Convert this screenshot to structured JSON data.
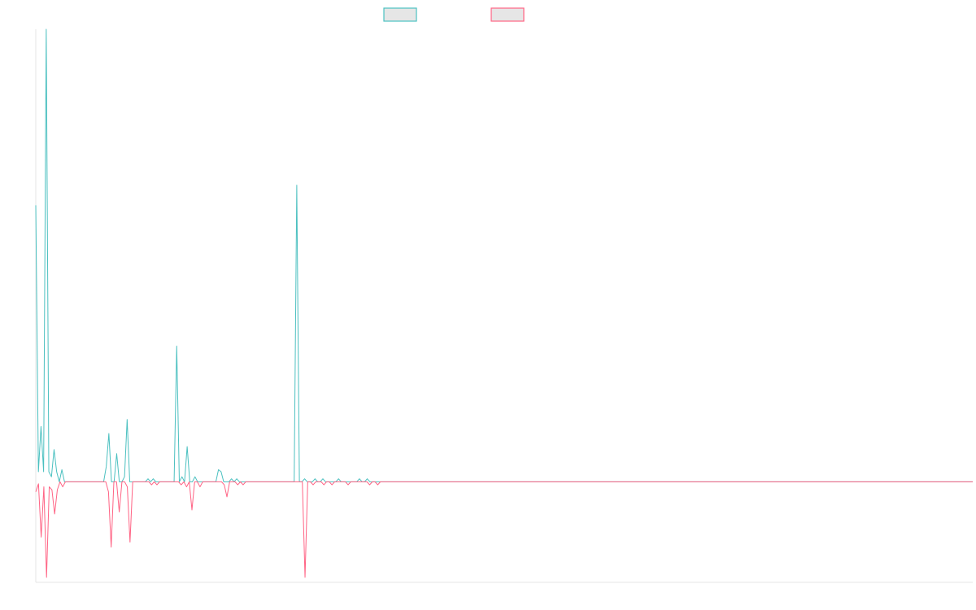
{
  "colors": {
    "series_a": "#4bc0c0",
    "series_b": "#ff6384",
    "legend_fill": "#e6e6e6",
    "axis": "#e6e6e6"
  },
  "legend": {
    "position": "top-center"
  },
  "chart_data": {
    "type": "line",
    "title": "",
    "xlabel": "",
    "ylabel": "",
    "grid": false,
    "ylim": [
      -100,
      450
    ],
    "series": [
      {
        "values": [
          275,
          10,
          55,
          10,
          450,
          10,
          5,
          32,
          10,
          0,
          12,
          0,
          0,
          0,
          0,
          0,
          0,
          0,
          0,
          0,
          0,
          0,
          0,
          0,
          0,
          0,
          0,
          15,
          48,
          0,
          0,
          28,
          0,
          0,
          5,
          62,
          0,
          0,
          0,
          0,
          0,
          0,
          0,
          3,
          0,
          3,
          0,
          0,
          0,
          0,
          0,
          0,
          0,
          0,
          135,
          0,
          5,
          0,
          35,
          0,
          0,
          5,
          0,
          0,
          0,
          0,
          0,
          0,
          0,
          0,
          12,
          10,
          0,
          0,
          0,
          3,
          0,
          3,
          0,
          0,
          0,
          0,
          0,
          0,
          0,
          0,
          0,
          0,
          0,
          0,
          0,
          0,
          0,
          0,
          0,
          0,
          0,
          0,
          0,
          0,
          295,
          0,
          0,
          3,
          0,
          0,
          0,
          3,
          0,
          0,
          3,
          0,
          0,
          0,
          0,
          0,
          3,
          0,
          0,
          0,
          0,
          0,
          0,
          0,
          3,
          0,
          0,
          3,
          0,
          0,
          0,
          0,
          0,
          0,
          0,
          0,
          0,
          0,
          0,
          0,
          0,
          0,
          0,
          0,
          0,
          0,
          0,
          0,
          0,
          0,
          0,
          0,
          0,
          0,
          0,
          0,
          0,
          0,
          0,
          0,
          0,
          0,
          0,
          0,
          0,
          0,
          0,
          0,
          0,
          0,
          0,
          0,
          0,
          0,
          0,
          0,
          0,
          0,
          0,
          0,
          0,
          0,
          0,
          0,
          0,
          0,
          0,
          0,
          0,
          0,
          0,
          0,
          0,
          0,
          0,
          0,
          0,
          0,
          0,
          0,
          0,
          0,
          0,
          0,
          0,
          0,
          0,
          0,
          0,
          0,
          0,
          0,
          0,
          0,
          0,
          0,
          0,
          0,
          0,
          0,
          0,
          0,
          0,
          0,
          0,
          0,
          0,
          0,
          0,
          0,
          0,
          0,
          0,
          0,
          0,
          0,
          0,
          0,
          0,
          0,
          0,
          0,
          0,
          0,
          0,
          0,
          0,
          0,
          0,
          0,
          0,
          0,
          0,
          0,
          0,
          0,
          0,
          0,
          0,
          0,
          0,
          0,
          0,
          0,
          0,
          0,
          0,
          0,
          0,
          0,
          0,
          0,
          0,
          0,
          0,
          0,
          0,
          0,
          0,
          0,
          0,
          0,
          0,
          0,
          0,
          0,
          0,
          0,
          0,
          0,
          0,
          0,
          0,
          0,
          0,
          0,
          0,
          0,
          0,
          0,
          0,
          0,
          0,
          0,
          0,
          0,
          0,
          0,
          0,
          0,
          0,
          0,
          0,
          0,
          0,
          0,
          0,
          0,
          0,
          0,
          0,
          0,
          0,
          0,
          0,
          0,
          0,
          0,
          0,
          0,
          0,
          0,
          0,
          0,
          0,
          0,
          0,
          0,
          0,
          0,
          0,
          0,
          0,
          0,
          0,
          0,
          0,
          0,
          0,
          0,
          0,
          0,
          0,
          0,
          0,
          0,
          0,
          0,
          0,
          0
        ]
      },
      {
        "values": [
          -10,
          -2,
          -55,
          -5,
          -95,
          -5,
          -8,
          -32,
          -8,
          0,
          -5,
          0,
          0,
          0,
          0,
          0,
          0,
          0,
          0,
          0,
          0,
          0,
          0,
          0,
          0,
          0,
          0,
          -10,
          -65,
          0,
          0,
          -30,
          0,
          0,
          -5,
          -60,
          0,
          0,
          0,
          0,
          0,
          0,
          0,
          -3,
          0,
          -3,
          0,
          0,
          0,
          0,
          0,
          0,
          0,
          0,
          -3,
          0,
          -5,
          0,
          -28,
          0,
          0,
          -5,
          0,
          0,
          0,
          0,
          0,
          0,
          0,
          0,
          -3,
          -15,
          0,
          0,
          0,
          -3,
          0,
          -3,
          0,
          0,
          0,
          0,
          0,
          0,
          0,
          0,
          0,
          0,
          0,
          0,
          0,
          0,
          0,
          0,
          0,
          0,
          0,
          0,
          0,
          0,
          -95,
          0,
          0,
          -3,
          0,
          0,
          0,
          -3,
          0,
          0,
          -3,
          0,
          0,
          0,
          0,
          0,
          -3,
          0,
          0,
          0,
          0,
          0,
          0,
          0,
          -3,
          0,
          0,
          -3,
          0,
          0,
          0,
          0,
          0,
          0,
          0,
          0,
          0,
          0,
          0,
          0,
          0,
          0,
          0,
          0,
          0,
          0,
          0,
          0,
          0,
          0,
          0,
          0,
          0,
          0,
          0,
          0,
          0,
          0,
          0,
          0,
          0,
          0,
          0,
          0,
          0,
          0,
          0,
          0,
          0,
          0,
          0,
          0,
          0,
          0,
          0,
          0,
          0,
          0,
          0,
          0,
          0,
          0,
          0,
          0,
          0,
          0,
          0,
          0,
          0,
          0,
          0,
          0,
          0,
          0,
          0,
          0,
          0,
          0,
          0,
          0,
          0,
          0,
          0,
          0,
          0,
          0,
          0,
          0,
          0,
          0,
          0,
          0,
          0,
          0,
          0,
          0,
          0,
          0,
          0,
          0,
          0,
          0,
          0,
          0,
          0,
          0,
          0,
          0,
          0,
          0,
          0,
          0,
          0,
          0,
          0,
          0,
          0,
          0,
          0,
          0,
          0,
          0,
          0,
          0,
          0,
          0,
          0,
          0,
          0,
          0,
          0,
          0,
          0,
          0,
          0,
          0,
          0,
          0,
          0,
          0,
          0,
          0,
          0,
          0,
          0,
          0,
          0,
          0,
          0,
          0,
          0,
          0,
          0,
          0,
          0,
          0,
          0,
          0,
          0,
          0,
          0,
          0,
          0,
          0,
          0,
          0,
          0,
          0,
          0,
          0,
          0,
          0,
          0,
          0,
          0,
          0,
          0,
          0,
          0,
          0,
          0,
          0,
          0,
          0,
          0,
          0,
          0,
          0,
          0,
          0,
          0,
          0,
          0,
          0,
          0,
          0,
          0,
          0,
          0,
          0,
          0,
          0,
          0,
          0,
          0,
          0,
          0,
          0,
          0,
          0,
          0,
          0,
          0,
          0,
          0,
          0,
          0,
          0,
          0,
          0,
          0,
          0,
          0,
          0,
          0,
          0,
          0,
          0,
          0
        ]
      }
    ]
  }
}
